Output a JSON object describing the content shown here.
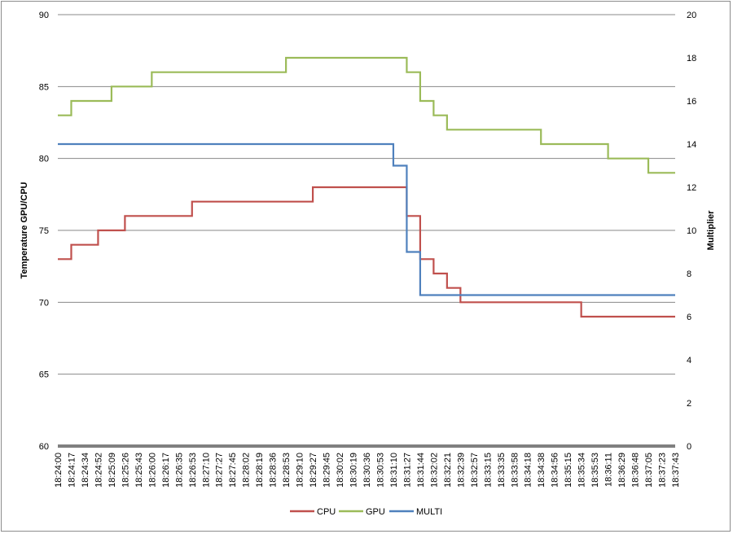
{
  "chart_data": {
    "type": "line",
    "title": "",
    "ylabel": "Temperature GPU/CPU",
    "y2label": "Multiplier",
    "ylim": [
      60,
      90
    ],
    "yticks": [
      60,
      65,
      70,
      75,
      80,
      85,
      90
    ],
    "y2lim": [
      0,
      20
    ],
    "y2ticks": [
      0,
      2,
      4,
      6,
      8,
      10,
      12,
      14,
      16,
      18,
      20
    ],
    "grid": "horizontal major",
    "legend_position": "bottom",
    "x_tick_labels": [
      "18:24:00",
      "18:24:17",
      "18:24:34",
      "18:24:52",
      "18:25:09",
      "18:25:26",
      "18:25:43",
      "18:26:00",
      "18:26:17",
      "18:26:35",
      "18:26:53",
      "18:27:10",
      "18:27:27",
      "18:27:45",
      "18:28:02",
      "18:28:19",
      "18:28:36",
      "18:28:53",
      "18:29:10",
      "18:29:27",
      "18:29:45",
      "18:30:02",
      "18:30:19",
      "18:30:36",
      "18:30:53",
      "18:31:10",
      "18:31:27",
      "18:31:44",
      "18:32:02",
      "18:32:21",
      "18:32:39",
      "18:32:57",
      "18:33:15",
      "18:33:35",
      "18:33:58",
      "18:34:18",
      "18:34:38",
      "18:34:56",
      "18:35:15",
      "18:35:34",
      "18:35:53",
      "18:36:11",
      "18:36:29",
      "18:36:48",
      "18:37:05",
      "18:37:23",
      "18:37:43"
    ],
    "series": [
      {
        "name": "CPU",
        "color": "#c0504d",
        "axis": "left",
        "x": [
          "18:24:00",
          "18:24:17",
          "18:24:34",
          "18:24:52",
          "18:25:09",
          "18:25:26",
          "18:25:43",
          "18:26:00",
          "18:26:17",
          "18:26:35",
          "18:26:53",
          "18:27:10",
          "18:27:27",
          "18:27:45",
          "18:28:02",
          "18:28:19",
          "18:28:36",
          "18:28:53",
          "18:29:10",
          "18:29:27",
          "18:29:45",
          "18:30:02",
          "18:30:19",
          "18:30:36",
          "18:30:53",
          "18:31:10",
          "18:31:27",
          "18:31:44",
          "18:32:02",
          "18:32:21",
          "18:32:39",
          "18:32:57",
          "18:33:15",
          "18:33:35",
          "18:33:58",
          "18:34:18",
          "18:34:38",
          "18:34:56",
          "18:35:15",
          "18:35:34",
          "18:35:53",
          "18:36:11",
          "18:36:29",
          "18:36:48",
          "18:37:05",
          "18:37:23",
          "18:37:43"
        ],
        "values": [
          73,
          74,
          74,
          75,
          75,
          76,
          76,
          76,
          76,
          76,
          77,
          77,
          77,
          77,
          77,
          77,
          77,
          77,
          77,
          78,
          78,
          78,
          78,
          78,
          78,
          78,
          76,
          73,
          72,
          71,
          70,
          70,
          70,
          70,
          70,
          70,
          70,
          70,
          70,
          69,
          69,
          69,
          69,
          69,
          69,
          69,
          69
        ]
      },
      {
        "name": "GPU",
        "color": "#9bbb59",
        "axis": "left",
        "x": [
          "18:24:00",
          "18:24:17",
          "18:24:34",
          "18:24:52",
          "18:25:09",
          "18:25:26",
          "18:25:43",
          "18:26:00",
          "18:26:17",
          "18:26:35",
          "18:26:53",
          "18:27:10",
          "18:27:27",
          "18:27:45",
          "18:28:02",
          "18:28:19",
          "18:28:36",
          "18:28:53",
          "18:29:10",
          "18:29:27",
          "18:29:45",
          "18:30:02",
          "18:30:19",
          "18:30:36",
          "18:30:53",
          "18:31:10",
          "18:31:27",
          "18:31:44",
          "18:32:02",
          "18:32:21",
          "18:32:39",
          "18:32:57",
          "18:33:15",
          "18:33:35",
          "18:33:58",
          "18:34:18",
          "18:34:38",
          "18:34:56",
          "18:35:15",
          "18:35:34",
          "18:35:53",
          "18:36:11",
          "18:36:29",
          "18:36:48",
          "18:37:05",
          "18:37:23",
          "18:37:43"
        ],
        "values": [
          83,
          84,
          84,
          84,
          85,
          85,
          85,
          86,
          86,
          86,
          86,
          86,
          86,
          86,
          86,
          86,
          86,
          87,
          87,
          87,
          87,
          87,
          87,
          87,
          87,
          87,
          86,
          84,
          83,
          82,
          82,
          82,
          82,
          82,
          82,
          82,
          81,
          81,
          81,
          81,
          81,
          80,
          80,
          80,
          79,
          79,
          79
        ]
      },
      {
        "name": "MULTI",
        "color": "#4f81bd",
        "axis": "right",
        "x": [
          "18:24:00",
          "18:24:17",
          "18:24:34",
          "18:24:52",
          "18:25:09",
          "18:25:26",
          "18:25:43",
          "18:26:00",
          "18:26:17",
          "18:26:35",
          "18:26:53",
          "18:27:10",
          "18:27:27",
          "18:27:45",
          "18:28:02",
          "18:28:19",
          "18:28:36",
          "18:28:53",
          "18:29:10",
          "18:29:27",
          "18:29:45",
          "18:30:02",
          "18:30:19",
          "18:30:36",
          "18:30:53",
          "18:31:10",
          "18:31:27",
          "18:31:44",
          "18:32:02",
          "18:32:21",
          "18:32:39",
          "18:32:57",
          "18:33:15",
          "18:33:35",
          "18:33:58",
          "18:34:18",
          "18:34:38",
          "18:34:56",
          "18:35:15",
          "18:35:34",
          "18:35:53",
          "18:36:11",
          "18:36:29",
          "18:36:48",
          "18:37:05",
          "18:37:23",
          "18:37:43"
        ],
        "values": [
          14,
          14,
          14,
          14,
          14,
          14,
          14,
          14,
          14,
          14,
          14,
          14,
          14,
          14,
          14,
          14,
          14,
          14,
          14,
          14,
          14,
          14,
          14,
          14,
          14,
          13,
          9,
          7,
          7,
          7,
          7,
          7,
          7,
          7,
          7,
          7,
          7,
          7,
          7,
          7,
          7,
          7,
          7,
          7,
          7,
          7,
          7
        ]
      }
    ]
  }
}
